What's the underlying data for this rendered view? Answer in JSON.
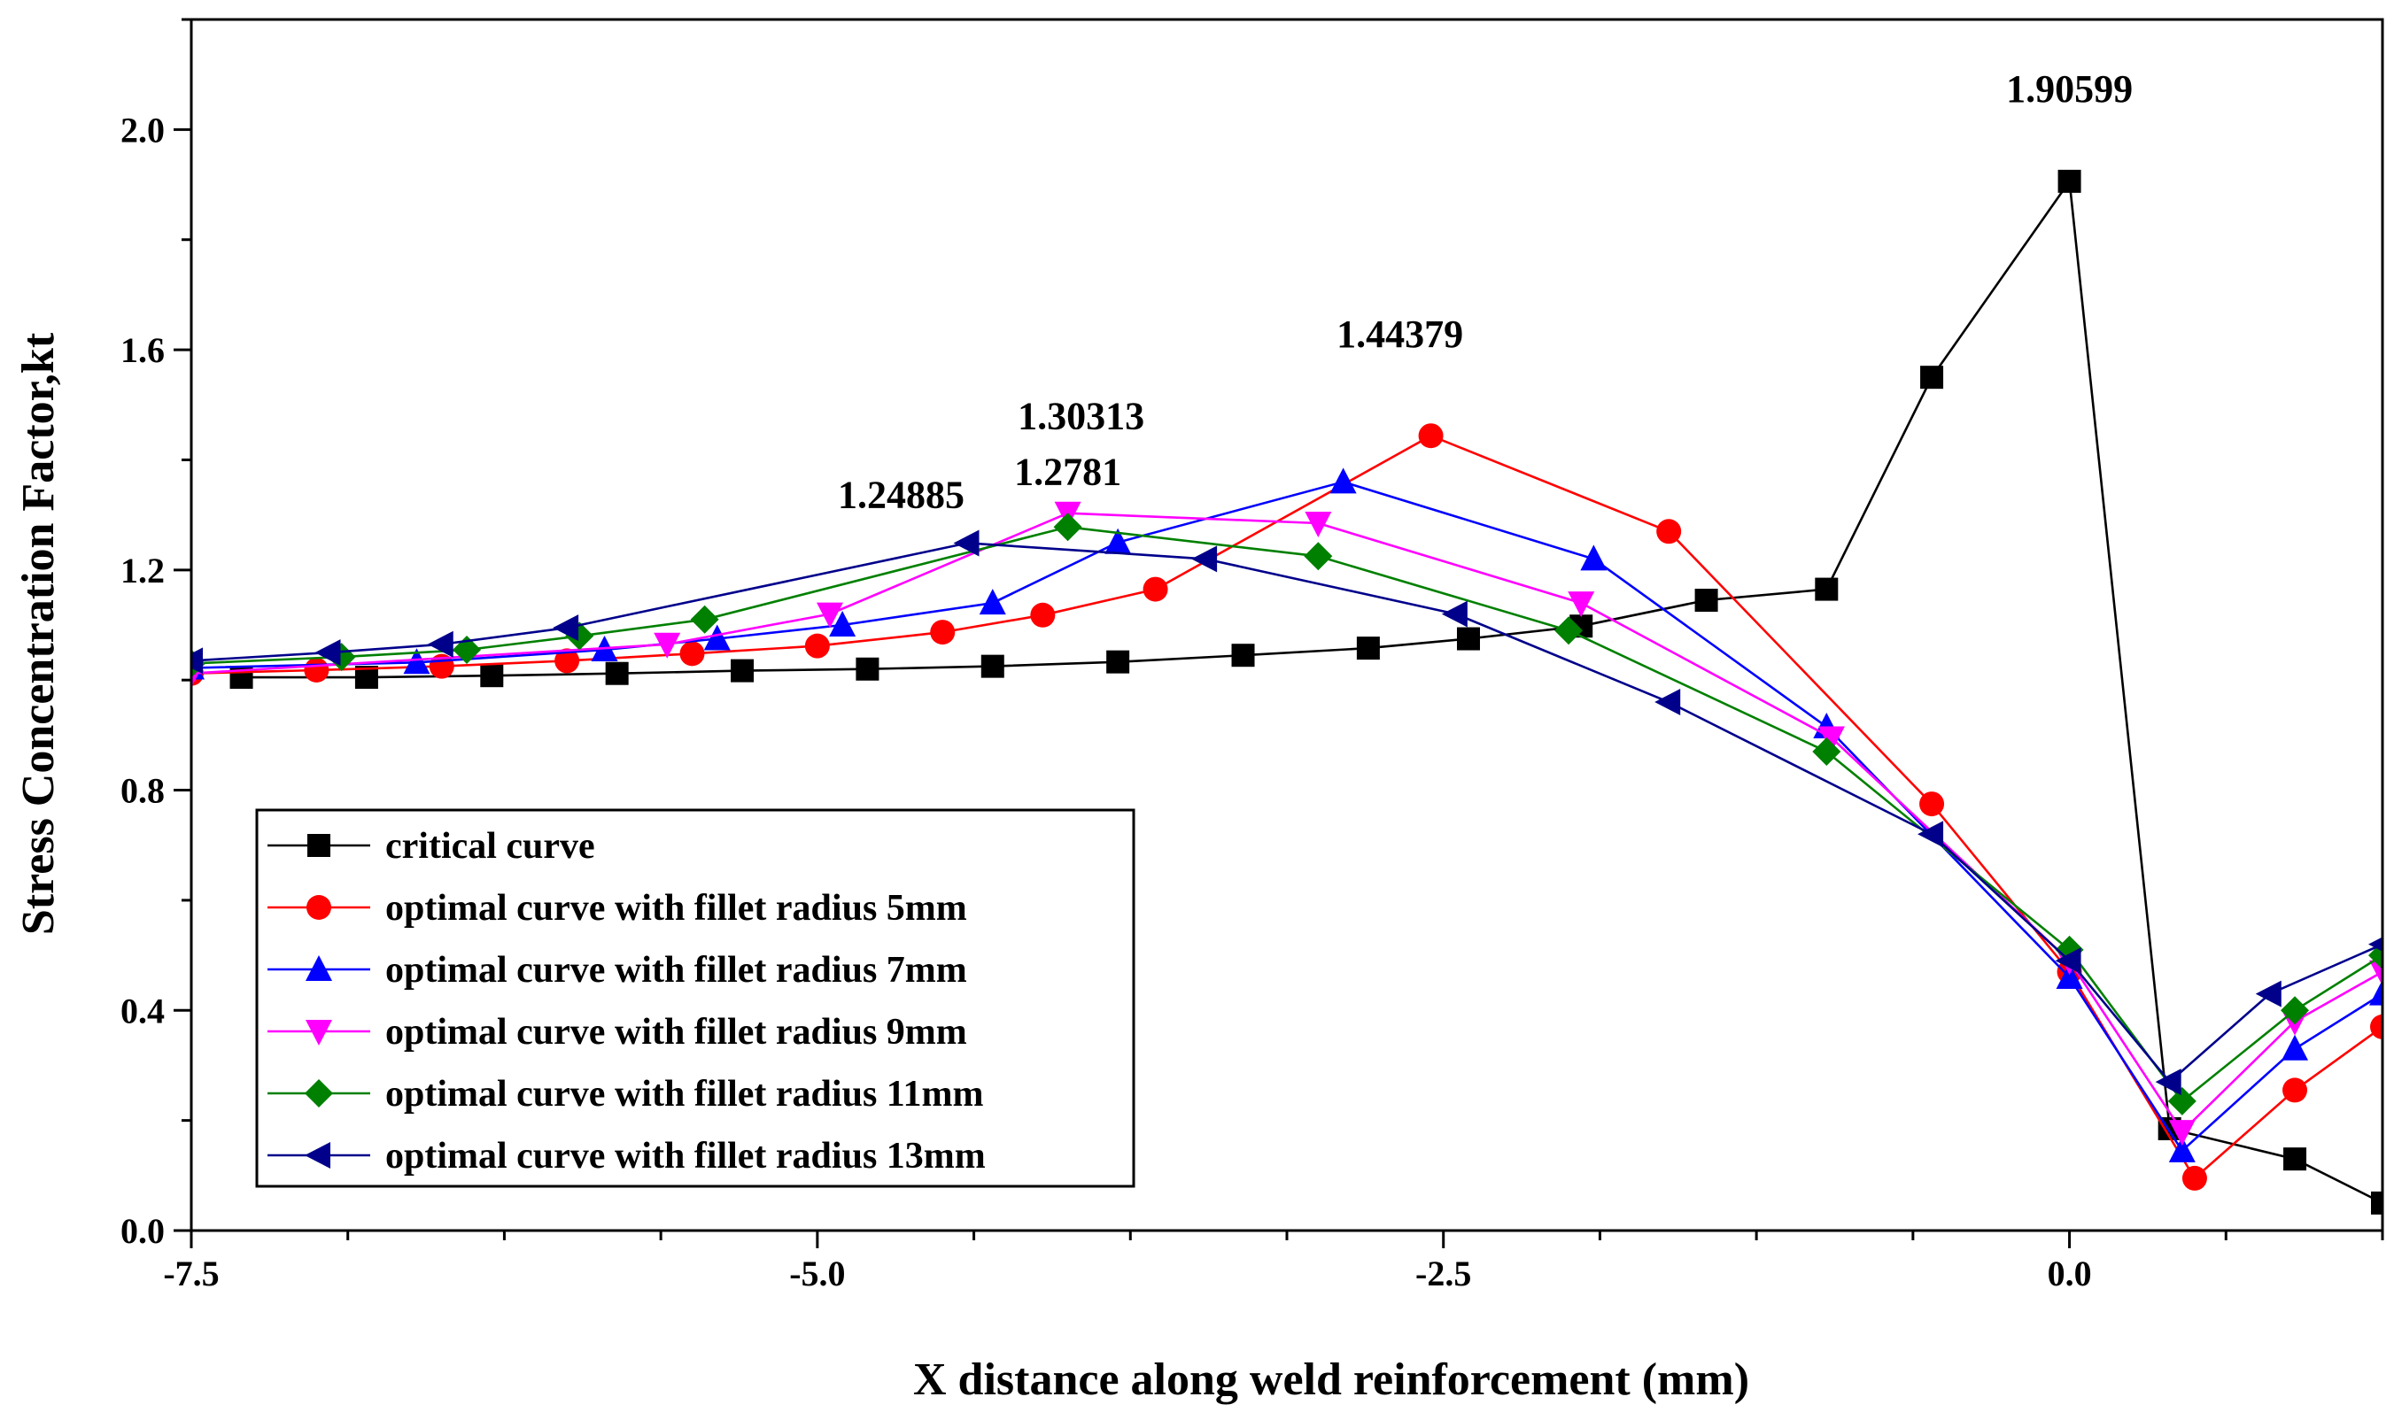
{
  "chart_data": {
    "type": "line",
    "title": "",
    "xlabel": "X distance along weld reinforcement (mm)",
    "ylabel": "Stress Concentration Factor,kt",
    "xlim": [
      -7.5,
      1.25
    ],
    "ylim": [
      0.0,
      2.2
    ],
    "xticks": [
      -7.5,
      -5.0,
      -2.5,
      0.0
    ],
    "xtick_labels": [
      "-7.5",
      "-5.0",
      "-2.5",
      "0.0"
    ],
    "yticks": [
      0.0,
      0.4,
      0.8,
      1.2,
      1.6,
      2.0
    ],
    "ytick_labels": [
      "0.0",
      "0.4",
      "0.8",
      "1.2",
      "1.6",
      "2.0"
    ],
    "grid": false,
    "legend_position": "bottom-left",
    "series": [
      {
        "name": "critical curve",
        "color": "#000000",
        "marker": "square",
        "x": [
          -7.3,
          -6.8,
          -6.3,
          -5.8,
          -5.3,
          -4.8,
          -4.3,
          -3.8,
          -3.3,
          -2.8,
          -2.4,
          -1.95,
          -1.45,
          -0.97,
          -0.55,
          0.0,
          0.4,
          0.9,
          1.25
        ],
        "y": [
          1.005,
          1.005,
          1.008,
          1.012,
          1.017,
          1.02,
          1.025,
          1.033,
          1.045,
          1.058,
          1.075,
          1.098,
          1.145,
          1.165,
          1.55,
          1.90599,
          0.185,
          0.13,
          0.05
        ]
      },
      {
        "name": "optimal curve with fillet radius 5mm",
        "color": "#ff0000",
        "marker": "circle",
        "x": [
          -7.5,
          -7.0,
          -6.5,
          -6.0,
          -5.5,
          -5.0,
          -4.5,
          -4.1,
          -3.65,
          -2.55,
          -1.6,
          -0.55,
          0.0,
          0.5,
          0.9,
          1.25
        ],
        "y": [
          1.012,
          1.018,
          1.025,
          1.035,
          1.048,
          1.062,
          1.087,
          1.118,
          1.165,
          1.44379,
          1.27,
          0.775,
          0.47,
          0.095,
          0.255,
          0.37
        ]
      },
      {
        "name": "optimal curve with fillet radius 7mm",
        "color": "#0000ff",
        "marker": "triangle-up",
        "x": [
          -7.5,
          -6.6,
          -5.85,
          -5.4,
          -4.9,
          -4.3,
          -3.8,
          -2.9,
          -1.9,
          -0.97,
          0.0,
          0.45,
          0.9,
          1.25
        ],
        "y": [
          1.022,
          1.032,
          1.055,
          1.075,
          1.1,
          1.14,
          1.25,
          1.36,
          1.22,
          0.915,
          0.46,
          0.145,
          0.33,
          0.43
        ]
      },
      {
        "name": "optimal curve with fillet radius 9mm",
        "color": "#ff00ff",
        "marker": "triangle-down",
        "x": [
          -7.5,
          -5.6,
          -4.95,
          -4.0,
          -3.0,
          -1.95,
          -0.95,
          0.0,
          0.45,
          0.9,
          1.25
        ],
        "y": [
          1.012,
          1.065,
          1.12,
          1.30313,
          1.285,
          1.14,
          0.895,
          0.49,
          0.18,
          0.38,
          0.47
        ]
      },
      {
        "name": "optimal curve with fillet radius 11mm",
        "color": "#008000",
        "marker": "diamond",
        "x": [
          -7.5,
          -6.9,
          -6.4,
          -5.95,
          -5.45,
          -4.0,
          -3.0,
          -2.0,
          -0.97,
          0.0,
          0.45,
          0.9,
          1.25
        ],
        "y": [
          1.03,
          1.042,
          1.055,
          1.08,
          1.11,
          1.2781,
          1.225,
          1.09,
          0.87,
          0.51,
          0.235,
          0.4,
          0.5
        ]
      },
      {
        "name": "optimal curve with fillet radius 13mm",
        "color": "#00008b",
        "marker": "triangle-left",
        "x": [
          -7.5,
          -6.95,
          -6.5,
          -6.0,
          -4.4,
          -3.45,
          -2.45,
          -1.6,
          -0.55,
          0.0,
          0.4,
          0.8,
          1.25
        ],
        "y": [
          1.035,
          1.05,
          1.065,
          1.095,
          1.24885,
          1.22,
          1.12,
          0.96,
          0.72,
          0.49,
          0.27,
          0.43,
          0.52
        ]
      }
    ],
    "annotations": [
      {
        "text": "1.90599",
        "x": 0.0,
        "y": 1.90599
      },
      {
        "text": "1.44379",
        "x": -2.55,
        "y": 1.44379
      },
      {
        "text": "1.30313",
        "x": -4.0,
        "y": 1.30313
      },
      {
        "text": "1.2781",
        "x": -4.0,
        "y": 1.2781
      },
      {
        "text": "1.24885",
        "x": -4.4,
        "y": 1.24885
      }
    ]
  }
}
